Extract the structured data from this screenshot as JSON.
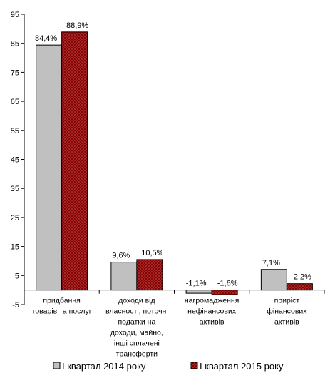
{
  "chart_data": {
    "type": "bar",
    "categories": [
      [
        "придбання",
        "товарів та послуг"
      ],
      [
        "доходи від",
        "власності, поточні",
        "податки на",
        "доходи, майно,",
        "інші сплачені",
        "трансферти"
      ],
      [
        "нагромадження",
        "нефінансових",
        "активів"
      ],
      [
        "приріст",
        "фінансових",
        "активів"
      ]
    ],
    "series": [
      {
        "name": "І квартал 2014 року",
        "values": [
          84.4,
          9.6,
          -1.1,
          7.1
        ],
        "labels": [
          "84,4%",
          "9,6%",
          "-1,1%",
          "7,1%"
        ]
      },
      {
        "name": "І квартал 2015 року",
        "values": [
          88.9,
          10.5,
          -1.6,
          2.2
        ],
        "labels": [
          "88,9%",
          "10,5%",
          "-1,6%",
          "2,2%"
        ]
      }
    ],
    "ylim": [
      -5,
      95
    ],
    "yticks": [
      "-5",
      "5",
      "15",
      "25",
      "35",
      "45",
      "55",
      "65",
      "75",
      "85",
      "95"
    ],
    "legend_position": "bottom",
    "grid": false
  },
  "colors": {
    "series1": "#c0c0c0",
    "series2": "#8b0000",
    "axis": "#000000"
  }
}
